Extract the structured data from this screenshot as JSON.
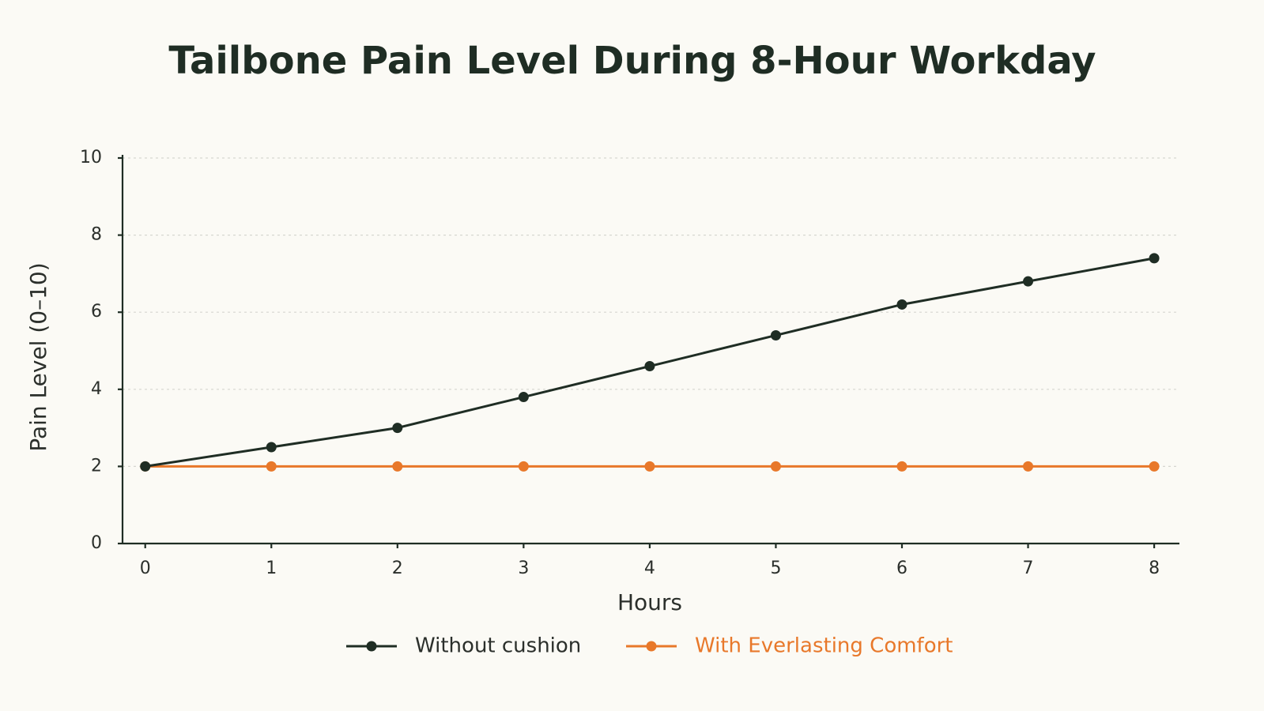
{
  "chart_data": {
    "type": "line",
    "title": "Tailbone Pain Level During 8-Hour Workday",
    "x_label": "Hours",
    "y_label": "Pain Level (0–10)",
    "x": [
      0,
      1,
      2,
      3,
      4,
      5,
      6,
      7,
      8
    ],
    "series": [
      {
        "name": "Without cushion",
        "color": "#1f2d24",
        "values": [
          2,
          2.5,
          3,
          3.8,
          4.6,
          5.4,
          6.2,
          6.8,
          7.4
        ]
      },
      {
        "name": "With Everlasting Comfort",
        "color": "#e8782a",
        "values": [
          2,
          2,
          2,
          2,
          2,
          2,
          2,
          2,
          2
        ]
      }
    ],
    "xlim": [
      -0.18,
      8.2
    ],
    "xticks": [
      0,
      1,
      2,
      3,
      4,
      5,
      6,
      7,
      8
    ],
    "ylim": [
      0,
      10
    ],
    "yticks": [
      0,
      2,
      4,
      6,
      8,
      10
    ],
    "grid": true,
    "legend": "bottom"
  }
}
